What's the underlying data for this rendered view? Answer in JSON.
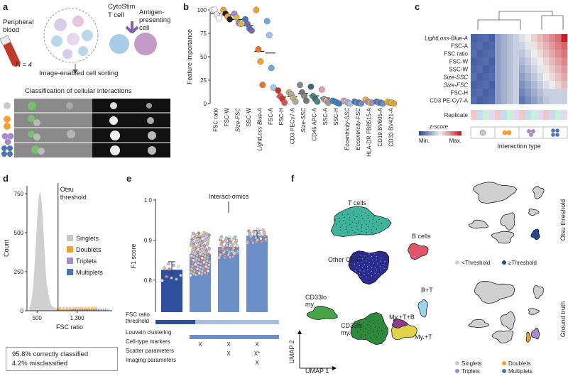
{
  "panels": {
    "a": {
      "letter": "a",
      "peripheral_blood": "Peripheral\nblood",
      "n_label": "N = 4",
      "cytostim": "CytoStim",
      "tcell": "T cell",
      "apc": "Antigen-\npresenting\ncell",
      "image_sorting": "Image-enabled cell sorting",
      "classification": "Classification of cellular interactions"
    },
    "b": {
      "letter": "b"
    },
    "c": {
      "letter": "c"
    },
    "d": {
      "letter": "d"
    },
    "e": {
      "letter": "e"
    },
    "f": {
      "letter": "f"
    }
  },
  "colors": {
    "singlet": "#c9c9c9",
    "doublet": "#f0a132",
    "triplet": "#a78bc7",
    "multiplet": "#4b76b3",
    "dark_blue": "#2f4e9c",
    "mid_blue": "#6c8fc8"
  },
  "chart_data": [
    {
      "id": "b",
      "type": "scatter",
      "ylabel": "Feature importance",
      "yticks": [
        0,
        25,
        50,
        75,
        100
      ],
      "ylim": [
        0,
        100
      ],
      "categories": [
        "FSC ratio",
        "FSC-W",
        "Size-FSC",
        "SSC-W",
        "LightLoss Blue-A",
        "FSC-A",
        "FSC-H",
        "CD3 PECy7-A",
        "Size-SSC",
        "CD45 APC-A",
        "SSC-A",
        "SSC-H",
        "Eccentricity-SSC",
        "Eccentricity-FSC",
        "HLA-DR FBB515-A",
        "CD19 BV605-A",
        "CD33 BV421-A"
      ],
      "italic_categories": [
        "Size-FSC",
        "LightLoss Blue-A",
        "Size-SSC",
        "Eccentricity-SSC",
        "Eccentricity-FSC"
      ],
      "series": [
        {
          "values": [
            100,
            100,
            96,
            90,
            100,
            88,
            14,
            12,
            20,
            18,
            15,
            3,
            3,
            2,
            4,
            2,
            2
          ]
        },
        {
          "values": [
            100,
            96,
            92,
            85,
            58,
            73,
            8,
            10,
            12,
            8,
            5,
            2,
            2,
            1,
            2,
            1,
            1
          ]
        },
        {
          "values": [
            95,
            93,
            86,
            80,
            45,
            38,
            5,
            6,
            8,
            5,
            3,
            1,
            1,
            1,
            1,
            1,
            1
          ]
        },
        {
          "values": [
            91,
            90,
            85,
            78,
            20,
            17,
            1,
            2,
            3,
            2,
            1,
            0,
            0,
            0,
            1,
            0,
            0
          ]
        }
      ]
    },
    {
      "id": "c",
      "type": "heatmap",
      "row_labels": [
        "LightLoss-Blue-A",
        "FSC-A",
        "FSC ratio",
        "FSC-W",
        "SSC-W",
        "Size-SSC",
        "Size-FSC",
        "FSC-H",
        "CD3 PE-Cy7-A"
      ],
      "italic_rows": [
        "LightLoss-Blue-A",
        "Size-SSC",
        "Size-FSC"
      ],
      "replicate_label": "Replicate",
      "xlabel": "Interaction type",
      "legend_title": "z-score",
      "legend_min": "Min.",
      "legend_max": "Max."
    },
    {
      "id": "d",
      "type": "area",
      "xlabel": "FSC ratio",
      "ylabel": "Count",
      "xticks": [
        "500",
        "1,300"
      ],
      "xtick_values": [
        500,
        1300
      ],
      "yticks": [
        0,
        250,
        500,
        750
      ],
      "threshold_label": "Otsu\nthreshold",
      "legend": [
        "Singlets",
        "Doublets",
        "Triplets",
        "Multiplets"
      ],
      "summary": [
        "95.8% correctly classified",
        "4.2% misclassified"
      ]
    },
    {
      "id": "e",
      "type": "bar",
      "ylabel": "F1 score",
      "yticks": [
        0.8,
        0.9,
        1.0
      ],
      "ylim": [
        0.72,
        1.0
      ],
      "values": [
        0.826,
        0.866,
        0.883,
        0.911
      ],
      "annotation": "Interact-omics",
      "rows": [
        {
          "label": "FSC ratio\nthreshold",
          "marks": [
            "",
            "",
            "",
            ""
          ]
        },
        {
          "label": "Louvain clustering",
          "marks": [
            "",
            "",
            "",
            ""
          ]
        },
        {
          "label": "Cell-type markers",
          "marks": [
            "",
            "X",
            "X",
            "X"
          ]
        },
        {
          "label": "Scatter parameters",
          "marks": [
            "",
            "",
            "X",
            "X*"
          ]
        },
        {
          "label": "Imaging parameters",
          "marks": [
            "",
            "",
            "",
            "X"
          ]
        }
      ]
    },
    {
      "id": "f",
      "type": "scatter",
      "xlabel": "UMAP 1",
      "ylabel": "UMAP 2",
      "clusters": [
        "T cells",
        "Other CD45",
        "B cells",
        "B+T",
        "My.+T+B",
        "CD33lo\nmy.",
        "CD33hi\nmy.",
        "My.+T"
      ],
      "otsu_title": "Otsu threshold",
      "ground_truth_title": "Ground truth",
      "otsu_legend": [
        "<Threshold",
        "≥Threshold"
      ],
      "gt_legend": [
        "Singlets",
        "Doublets",
        "Triplets",
        "Multiplets"
      ]
    }
  ]
}
